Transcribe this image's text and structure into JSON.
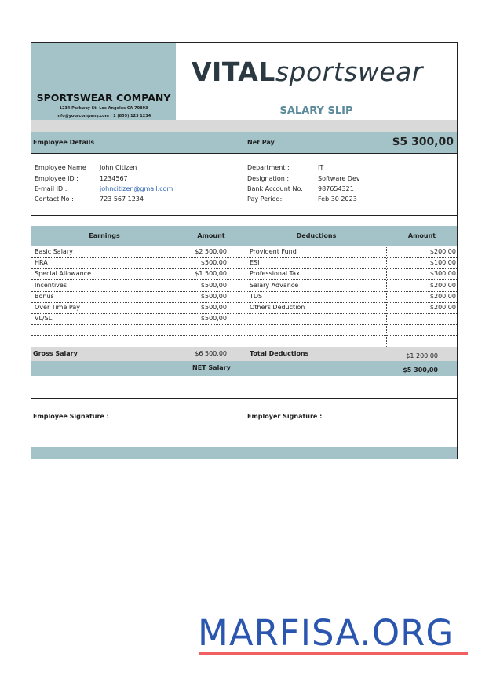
{
  "company": {
    "name": "SPORTSWEAR COMPANY",
    "address": "1234 Parkway St, Los Angeles CA 70893",
    "contact": "info@yourcompany.com I 1 (855) 123 1234"
  },
  "logo": {
    "bold": "VITAL",
    "light": "sportswear"
  },
  "title": "SALARY SLIP",
  "bar": {
    "employee_details": "Employee Details",
    "net_pay_label": "Net Pay",
    "net_pay_value": "$5 300,00"
  },
  "employee": {
    "left": [
      {
        "label": "Employee Name :",
        "value": "John Citizen"
      },
      {
        "label": "Employee ID :",
        "value": "1234567"
      },
      {
        "label": "E-mail ID :",
        "value": "johncitizen@gmail.com"
      },
      {
        "label": "Contact No :",
        "value": "723 567 1234"
      }
    ],
    "right": [
      {
        "label": "Department :",
        "value": "IT"
      },
      {
        "label": "Designation :",
        "value": "Software Dev"
      },
      {
        "label": "Bank Account No.",
        "value": "987654321"
      },
      {
        "label": "Pay Period:",
        "value": "Feb 30 2023"
      }
    ]
  },
  "table": {
    "headers": [
      "Earnings",
      "Amount",
      "Deductions",
      "Amount"
    ],
    "rows": [
      [
        "Basic Salary",
        "$2 500,00",
        "Provident Fund",
        "$200,00"
      ],
      [
        "HRA",
        "$500,00",
        "ESI",
        "$100,00"
      ],
      [
        "Special Allowance",
        "$1 500,00",
        "Professional Tax",
        "$300,00"
      ],
      [
        "Incentives",
        "$500,00",
        "Salary Advance",
        "$200,00"
      ],
      [
        "Bonus",
        "$500,00",
        "TDS",
        "$200,00"
      ],
      [
        "Over Time Pay",
        "$500,00",
        "Others Deduction",
        "$200,00"
      ],
      [
        "VL/SL",
        "$500,00",
        "",
        ""
      ],
      [
        "",
        "",
        "",
        ""
      ],
      [
        "",
        "",
        "",
        ""
      ]
    ],
    "gross_label": "Gross Salary",
    "gross_value": "$6 500,00",
    "total_ded_label": "Total Deductions",
    "total_ded_value": "$1 200,00",
    "net_label": "NET Salary",
    "net_value": "$5 300,00"
  },
  "signatures": {
    "employee": "Employee Signature :",
    "employer": "Employer Signature :"
  },
  "watermark": "MARFISA.ORG",
  "colors": {
    "teal": "#a3c3c8",
    "gray": "#d9d9d9",
    "logo": "#2b3a42",
    "title": "#5b8a9a",
    "watermark": "#2a56b0",
    "underline": "#f06060"
  }
}
